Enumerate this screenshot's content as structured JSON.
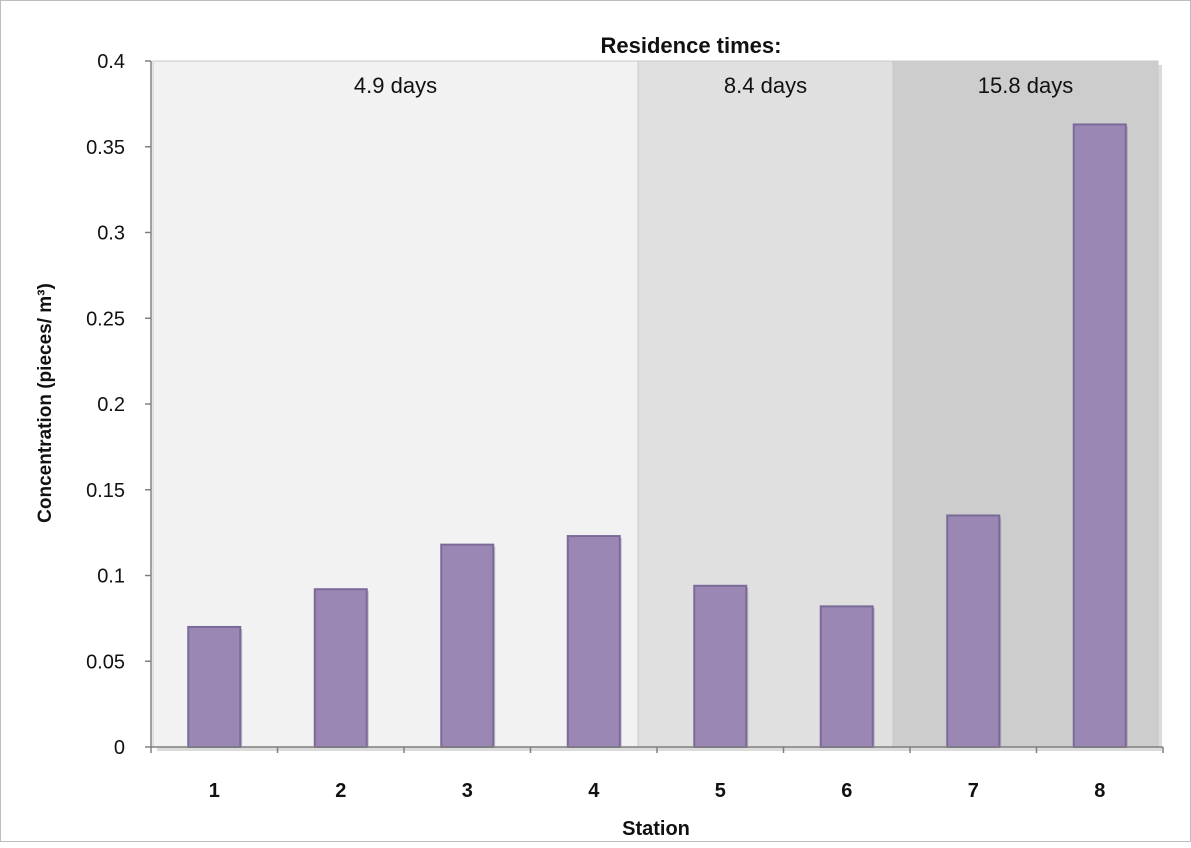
{
  "chart_data": {
    "type": "bar",
    "title": "Residence times:",
    "xlabel": "Station",
    "ylabel": "Concentration (pieces/ m³)",
    "categories": [
      "1",
      "2",
      "3",
      "4",
      "5",
      "6",
      "7",
      "8"
    ],
    "values": [
      0.07,
      0.092,
      0.118,
      0.123,
      0.094,
      0.082,
      0.135,
      0.363
    ],
    "ylim": [
      0,
      0.4
    ],
    "yticks": [
      "0",
      "0.05",
      "0.1",
      "0.15",
      "0.2",
      "0.25",
      "0.3",
      "0.35",
      "0.4"
    ],
    "grid": false,
    "legend": "none",
    "bar_color": "#9b87b4",
    "bar_edge_color": "#7a6a99",
    "regions": [
      {
        "label": "4.9 days",
        "from_category": 1,
        "to_category": 4,
        "fill": "#f2f2f2"
      },
      {
        "label": "8.4 days",
        "from_category": 5,
        "to_category": 6,
        "fill": "#e0e0e0"
      },
      {
        "label": "15.8 days",
        "from_category": 7,
        "to_category": 8,
        "fill": "#cdcdcd"
      }
    ]
  }
}
